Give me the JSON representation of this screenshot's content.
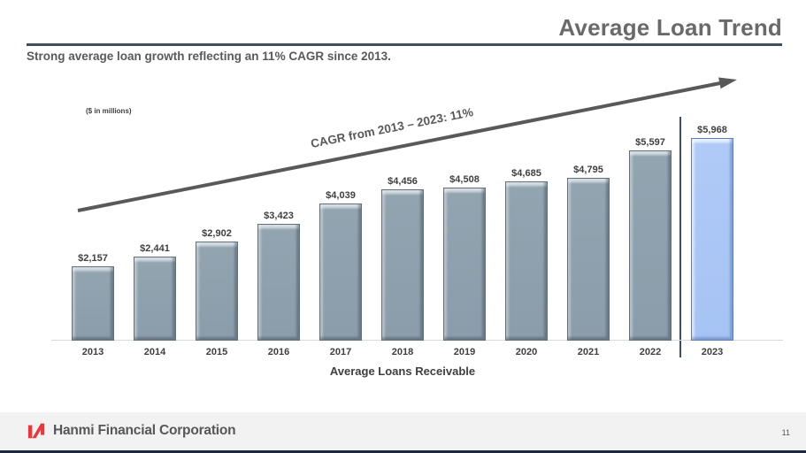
{
  "slide": {
    "title": "Average Loan Trend",
    "subtitle": "Strong average loan growth reflecting an 11% CAGR since 2013.",
    "units_note": "($ in millions)",
    "page_number": "11"
  },
  "annotation": {
    "cagr_label": "CAGR from 2013 – 2023: 11%"
  },
  "chart_data": {
    "type": "bar",
    "title": "Average Loans Receivable",
    "categories": [
      "2013",
      "2014",
      "2015",
      "2016",
      "2017",
      "2018",
      "2019",
      "2020",
      "2021",
      "2022",
      "2023"
    ],
    "values": [
      2157,
      2441,
      2902,
      3423,
      4039,
      4456,
      4508,
      4685,
      4795,
      5597,
      5968
    ],
    "value_labels": [
      "$2,157",
      "$2,441",
      "$2,902",
      "$3,423",
      "$4,039",
      "$4,456",
      "$4,508",
      "$4,685",
      "$4,795",
      "$5,597",
      "$5,968"
    ],
    "highlight_index": 10,
    "units": "$ in millions",
    "ylim": [
      0,
      6300
    ],
    "legend": "none",
    "grid": false,
    "colors": {
      "bar": "#8b9caa",
      "bar_highlight": "#a5c3f4",
      "arrow": "#595959",
      "separator": "#3f4e5c",
      "title_text": "#6a6a6a",
      "logo_red": "#e23a3f",
      "footer_strip": "#1b2a3a"
    }
  },
  "footer": {
    "company": "Hanmi Financial Corporation"
  }
}
